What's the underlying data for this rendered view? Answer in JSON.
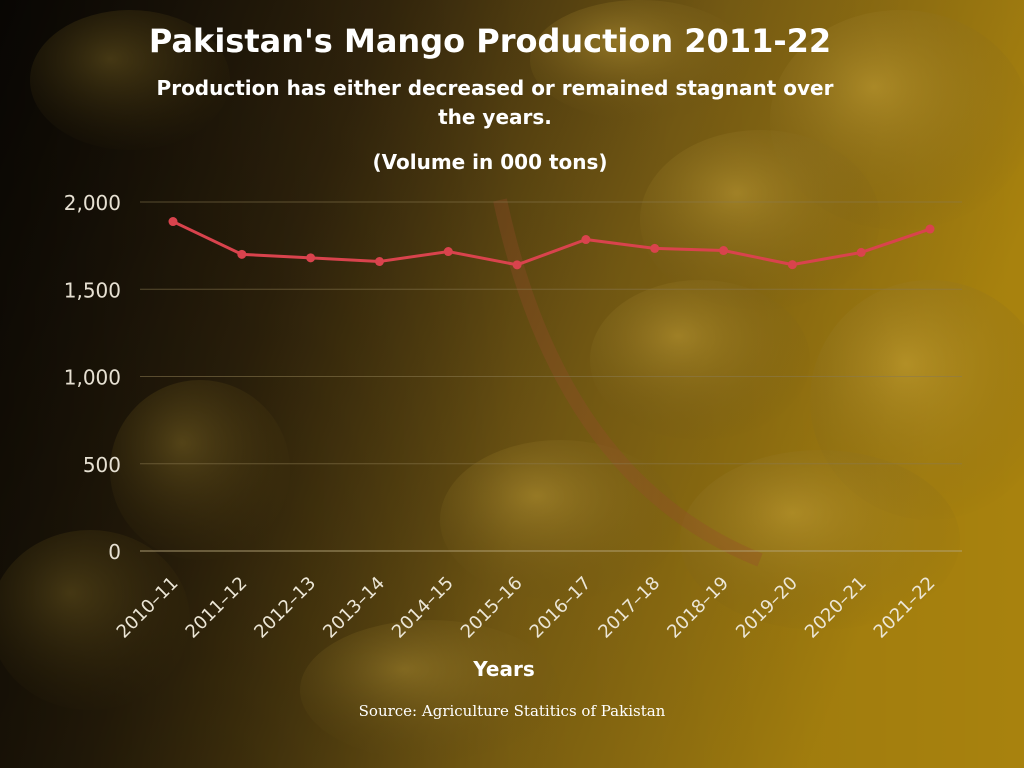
{
  "title": "Pakistan's Mango Production 2011-22",
  "subtitle": "Production has either decreased or remained stagnant over the years.",
  "unit_note": "(Volume in 000 tons)",
  "source": "Source: Agriculture Statitics of Pakistan",
  "colors": {
    "line": "#d9434d",
    "text": "#ffffff",
    "grid": "#8a7a50"
  },
  "chart_data": {
    "type": "line",
    "title": "Pakistan's Mango Production 2011-22",
    "subtitle": "Production has either decreased or remained stagnant over the years.",
    "xlabel": "Years",
    "ylabel": "",
    "categories": [
      "2010–11",
      "2011–12",
      "2012–13",
      "2013–14",
      "2014–15",
      "2015–16",
      "2016–17",
      "2017–18",
      "2018–19",
      "2019–20",
      "2020–21",
      "2021–22"
    ],
    "series": [
      {
        "values": [
          1888,
          1700,
          1680,
          1659,
          1716,
          1640,
          1785,
          1734,
          1722,
          1641,
          1711,
          1845
        ]
      }
    ],
    "yticks": [
      "0",
      "500",
      "1,000",
      "1,500",
      "2,000"
    ],
    "ylim": [
      0,
      2000
    ],
    "grid": true,
    "legend": "none"
  }
}
